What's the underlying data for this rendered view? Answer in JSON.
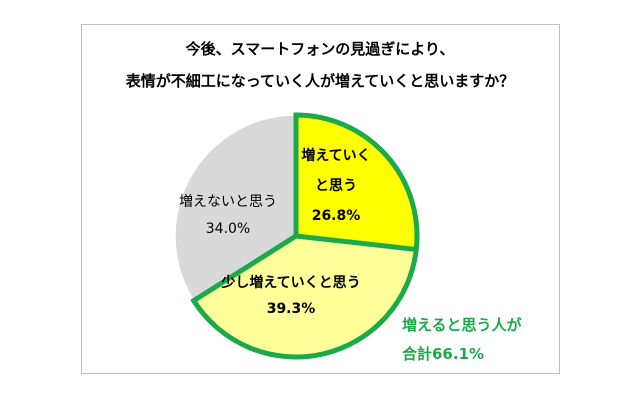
{
  "title_lines": [
    "今後、スマートフォンの見過ぎにより、",
    "表情が不細工になっていく人が増えていくと思いますか？"
  ],
  "callout": {
    "lines": [
      "増えると思う人が",
      "合計66.1%"
    ],
    "color": "#1aaa4a"
  },
  "chart_data": {
    "type": "pie",
    "title": "今後、スマートフォンの見過ぎにより、表情が不細工になっていく人が増えていくと思いますか？",
    "start": "12 o'clock, clockwise",
    "slices": [
      {
        "label_lines": [
          "増えていく",
          "と思う"
        ],
        "value": 26.8,
        "value_label": "26.8%",
        "color": "#ffff00",
        "highlight": true
      },
      {
        "label_lines": [
          "少し増えていくと思う"
        ],
        "value": 39.3,
        "value_label": "39.3%",
        "color": "#ffff99",
        "highlight": true
      },
      {
        "label_lines": [
          "増えないと思う"
        ],
        "value": 34.0,
        "value_label": "34.0%",
        "color": "#d9d9d9",
        "highlight": false
      }
    ],
    "highlight_outline_color": "#1aaa4a",
    "callout_total": 66.1
  }
}
